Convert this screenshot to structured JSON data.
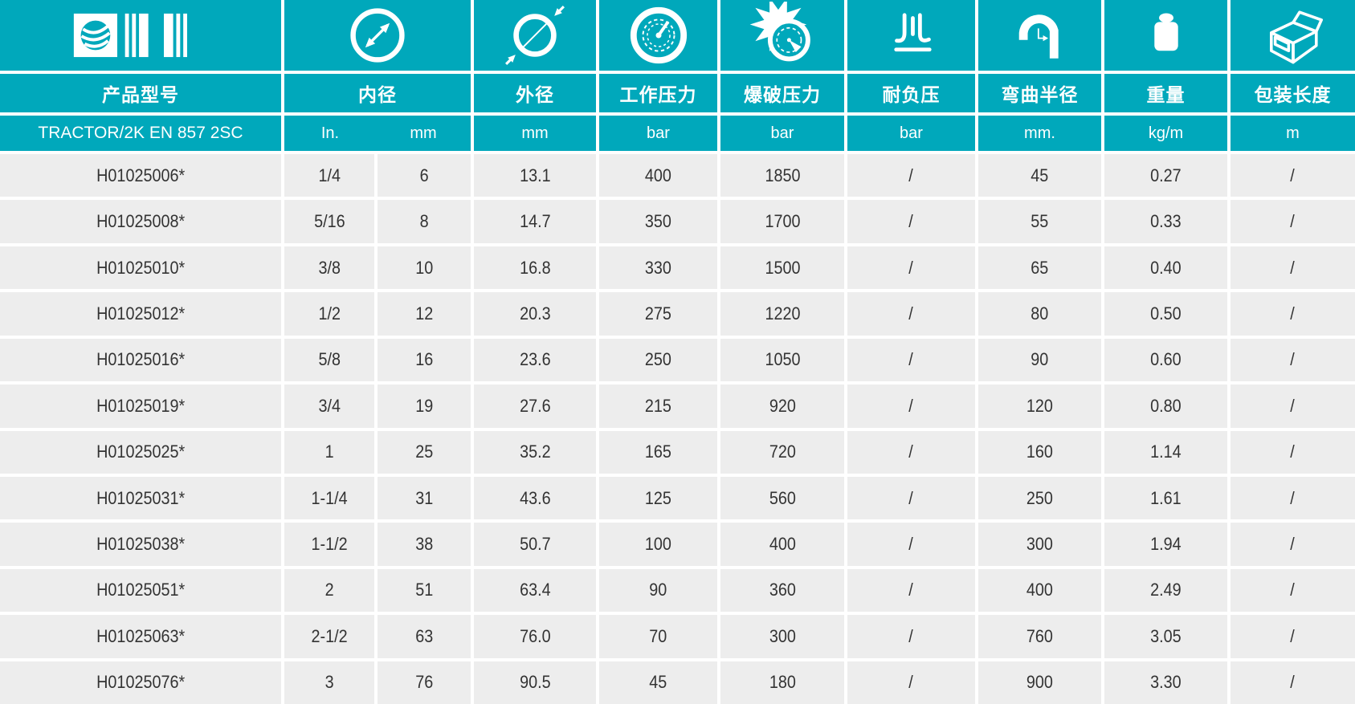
{
  "colors": {
    "header_teal": "#00A8BB",
    "row_gray": "#EDEDED",
    "divider_white": "#FFFFFF",
    "text_dark": "#333333"
  },
  "table": {
    "series_name": "TRACTOR/2K EN 857 2SC",
    "columns": [
      {
        "label": "产品型号",
        "icon": "barcode-icon",
        "unit": ""
      },
      {
        "label": "内径",
        "icon": "inner-diameter-icon",
        "units": [
          "In.",
          "mm"
        ]
      },
      {
        "label": "外径",
        "icon": "outer-diameter-icon",
        "unit": "mm"
      },
      {
        "label": "工作压力",
        "icon": "working-pressure-gauge-icon",
        "unit": "bar"
      },
      {
        "label": "爆破压力",
        "icon": "burst-pressure-icon",
        "unit": "bar"
      },
      {
        "label": "耐负压",
        "icon": "vacuum-resistance-icon",
        "unit": "bar"
      },
      {
        "label": "弯曲半径",
        "icon": "bend-radius-icon",
        "unit": "mm."
      },
      {
        "label": "重量",
        "icon": "weight-icon",
        "unit": "kg/m"
      },
      {
        "label": "包装长度",
        "icon": "package-length-icon",
        "unit": "m"
      }
    ],
    "rows": [
      [
        "H01025006*",
        "1/4",
        "6",
        "13.1",
        "400",
        "1850",
        "/",
        "45",
        "0.27",
        "/"
      ],
      [
        "H01025008*",
        "5/16",
        "8",
        "14.7",
        "350",
        "1700",
        "/",
        "55",
        "0.33",
        "/"
      ],
      [
        "H01025010*",
        "3/8",
        "10",
        "16.8",
        "330",
        "1500",
        "/",
        "65",
        "0.40",
        "/"
      ],
      [
        "H01025012*",
        "1/2",
        "12",
        "20.3",
        "275",
        "1220",
        "/",
        "80",
        "0.50",
        "/"
      ],
      [
        "H01025016*",
        "5/8",
        "16",
        "23.6",
        "250",
        "1050",
        "/",
        "90",
        "0.60",
        "/"
      ],
      [
        "H01025019*",
        "3/4",
        "19",
        "27.6",
        "215",
        "920",
        "/",
        "120",
        "0.80",
        "/"
      ],
      [
        "H01025025*",
        "1",
        "25",
        "35.2",
        "165",
        "720",
        "/",
        "160",
        "1.14",
        "/"
      ],
      [
        "H01025031*",
        "1-1/4",
        "31",
        "43.6",
        "125",
        "560",
        "/",
        "250",
        "1.61",
        "/"
      ],
      [
        "H01025038*",
        "1-1/2",
        "38",
        "50.7",
        "100",
        "400",
        "/",
        "300",
        "1.94",
        "/"
      ],
      [
        "H01025051*",
        "2",
        "51",
        "63.4",
        "90",
        "360",
        "/",
        "400",
        "2.49",
        "/"
      ],
      [
        "H01025063*",
        "2-1/2",
        "63",
        "76.0",
        "70",
        "300",
        "/",
        "760",
        "3.05",
        "/"
      ],
      [
        "H01025076*",
        "3",
        "76",
        "90.5",
        "45",
        "180",
        "/",
        "900",
        "3.30",
        "/"
      ]
    ]
  }
}
